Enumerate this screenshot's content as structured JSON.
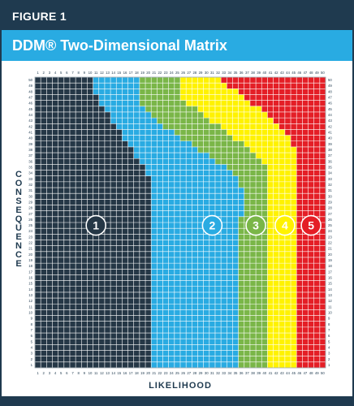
{
  "figure_label": "FIGURE 1",
  "title": "DDM® Two-Dimensional Matrix",
  "colors": {
    "header": "#1f3a4f",
    "title_bar": "#29abe2",
    "zone1": "#253746",
    "zone2": "#29abe2",
    "zone3": "#7ab648",
    "zone4": "#fff200",
    "zone5": "#e41e26"
  },
  "chart_data": {
    "type": "heatmap",
    "title": "DDM® Two-Dimensional Matrix",
    "xlabel": "LIKELIHOOD",
    "ylabel": "CONSEQUENCE",
    "x_ticks": [
      1,
      2,
      3,
      4,
      5,
      6,
      7,
      8,
      9,
      10,
      11,
      12,
      13,
      14,
      15,
      16,
      17,
      18,
      19,
      20,
      21,
      22,
      23,
      24,
      25,
      26,
      27,
      28,
      29,
      30,
      31,
      32,
      33,
      34,
      35,
      36,
      37,
      38,
      39,
      40,
      41,
      42,
      43,
      44,
      45,
      46,
      47,
      48,
      49,
      50
    ],
    "y_ticks": [
      1,
      2,
      3,
      4,
      5,
      6,
      7,
      8,
      9,
      10,
      11,
      12,
      13,
      14,
      15,
      16,
      17,
      18,
      19,
      20,
      21,
      22,
      23,
      24,
      25,
      26,
      27,
      28,
      29,
      30,
      31,
      32,
      33,
      34,
      35,
      36,
      37,
      38,
      39,
      40,
      41,
      42,
      43,
      44,
      45,
      46,
      47,
      48,
      49,
      50
    ],
    "xlim": [
      1,
      50
    ],
    "ylim": [
      1,
      50
    ],
    "grid": true,
    "zones": [
      {
        "label": "1",
        "color": "#253746",
        "marker_at": [
          11,
          25
        ]
      },
      {
        "label": "2",
        "color": "#29abe2",
        "marker_at": [
          31,
          25
        ]
      },
      {
        "label": "3",
        "color": "#7ab648",
        "marker_at": [
          38.5,
          25
        ]
      },
      {
        "label": "4",
        "color": "#fff200",
        "marker_at": [
          43.5,
          25
        ]
      },
      {
        "label": "5",
        "color": "#e41e26",
        "marker_at": [
          48,
          25
        ]
      }
    ],
    "zone_boundaries": [
      {
        "between": "1-2",
        "points": [
          [
            10,
            50
          ],
          [
            10,
            48
          ],
          [
            12,
            45
          ],
          [
            14,
            42
          ],
          [
            16,
            39
          ],
          [
            18,
            36
          ],
          [
            20,
            33
          ],
          [
            20,
            28
          ],
          [
            20,
            1
          ]
        ]
      },
      {
        "between": "2-3",
        "points": [
          [
            18,
            50
          ],
          [
            18,
            46
          ],
          [
            21,
            43
          ],
          [
            25,
            40
          ],
          [
            30,
            37
          ],
          [
            34,
            34
          ],
          [
            36,
            31
          ],
          [
            36,
            28
          ],
          [
            35,
            25
          ],
          [
            35,
            1
          ]
        ]
      },
      {
        "between": "3-4",
        "points": [
          [
            25,
            50
          ],
          [
            25,
            47
          ],
          [
            29,
            44
          ],
          [
            33,
            41
          ],
          [
            37,
            38
          ],
          [
            40,
            35
          ],
          [
            40,
            1
          ]
        ]
      },
      {
        "between": "4-5",
        "points": [
          [
            32,
            50
          ],
          [
            36,
            47
          ],
          [
            40,
            44
          ],
          [
            43,
            41
          ],
          [
            45,
            38
          ],
          [
            45,
            1
          ]
        ]
      }
    ]
  }
}
